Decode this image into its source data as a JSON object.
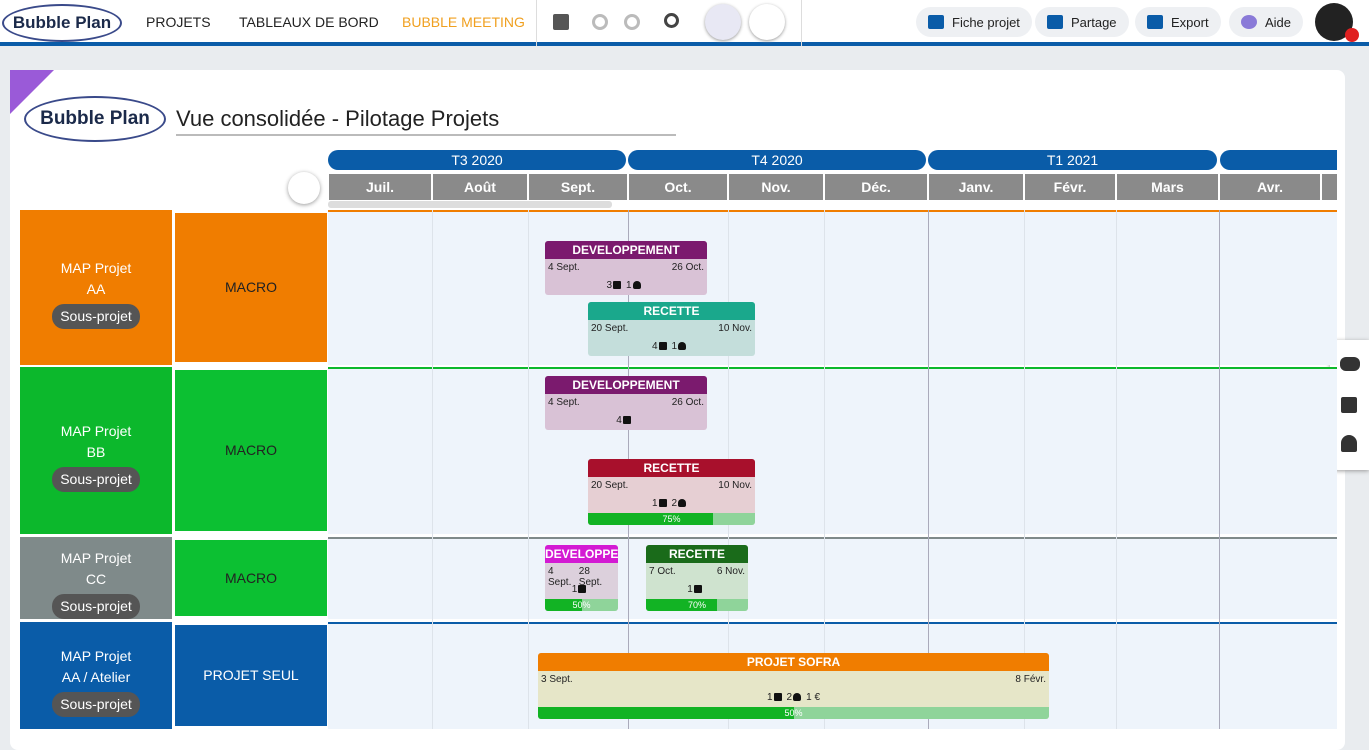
{
  "nav": {
    "logo": "Bubble Plan",
    "menu": [
      "PROJETS",
      "TABLEAUX DE BORD",
      "BUBBLE MEETING"
    ],
    "actions": [
      "Fiche projet",
      "Partage",
      "Export",
      "Aide"
    ]
  },
  "page": {
    "logo": "Bubble Plan",
    "title": "Vue consolidée - Pilotage Projets"
  },
  "timeline": {
    "quarters": [
      "T3 2020",
      "T4 2020",
      "T1 2021"
    ],
    "months": [
      "Juil.",
      "Août",
      "Sept.",
      "Oct.",
      "Nov.",
      "Déc.",
      "Janv.",
      "Févr.",
      "Mars",
      "Avr."
    ]
  },
  "rows": [
    {
      "project": "MAP Projet AA",
      "tag": "Sous-projet",
      "lane": "MACRO",
      "tasks": [
        {
          "name": "DEVELOPPEMENT",
          "start": "4 Sept.",
          "end": "26 Oct.",
          "counts": {
            "tasks": "3",
            "people": "1"
          }
        },
        {
          "name": "RECETTE",
          "start": "20 Sept.",
          "end": "10 Nov.",
          "counts": {
            "tasks": "4",
            "people": "1"
          }
        }
      ]
    },
    {
      "project": "MAP Projet BB",
      "tag": "Sous-projet",
      "lane": "MACRO",
      "tasks": [
        {
          "name": "DEVELOPPEMENT",
          "start": "4 Sept.",
          "end": "26 Oct.",
          "counts": {
            "tasks": "4"
          }
        },
        {
          "name": "RECETTE",
          "start": "20 Sept.",
          "end": "10 Nov.",
          "counts": {
            "tasks": "1",
            "people": "2"
          },
          "progress": "75%"
        }
      ]
    },
    {
      "project": "MAP Projet CC",
      "tag": "Sous-projet",
      "lane": "MACRO",
      "tasks": [
        {
          "name": "DEVELOPPEMENT",
          "start": "4 Sept.",
          "end": "28 Sept.",
          "counts": {
            "tasks": "1"
          },
          "progress": "50%"
        },
        {
          "name": "RECETTE",
          "start": "7 Oct.",
          "end": "6 Nov.",
          "counts": {
            "tasks": "1"
          },
          "progress": "70%"
        }
      ]
    },
    {
      "project": "MAP Projet AA  /  Atelier",
      "tag": "Sous-projet",
      "lane": "PROJET SEUL",
      "tasks": [
        {
          "name": "PROJET SOFRA",
          "start": "3 Sept.",
          "end": "8 Févr.",
          "counts": {
            "tasks": "1",
            "people": "2",
            "budget": "1 €"
          },
          "progress": "50%"
        }
      ]
    }
  ]
}
